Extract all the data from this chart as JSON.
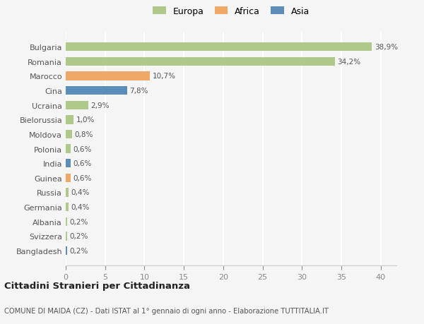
{
  "categories": [
    "Bangladesh",
    "Svizzera",
    "Albania",
    "Germania",
    "Russia",
    "Guinea",
    "India",
    "Polonia",
    "Moldova",
    "Bielorussia",
    "Ucraina",
    "Cina",
    "Marocco",
    "Romania",
    "Bulgaria"
  ],
  "values": [
    0.2,
    0.2,
    0.2,
    0.4,
    0.4,
    0.6,
    0.6,
    0.6,
    0.8,
    1.0,
    2.9,
    7.8,
    10.7,
    34.2,
    38.9
  ],
  "labels": [
    "0,2%",
    "0,2%",
    "0,2%",
    "0,4%",
    "0,4%",
    "0,6%",
    "0,6%",
    "0,6%",
    "0,8%",
    "1,0%",
    "2,9%",
    "7,8%",
    "10,7%",
    "34,2%",
    "38,9%"
  ],
  "colors": [
    "#5b8db8",
    "#aec98a",
    "#aec98a",
    "#aec98a",
    "#aec98a",
    "#f0a868",
    "#5b8db8",
    "#aec98a",
    "#aec98a",
    "#aec98a",
    "#aec98a",
    "#5b8db8",
    "#f0a868",
    "#aec98a",
    "#aec98a"
  ],
  "legend_labels": [
    "Europa",
    "Africa",
    "Asia"
  ],
  "legend_colors": [
    "#aec98a",
    "#f0a868",
    "#5b8db8"
  ],
  "xlim": [
    0,
    42
  ],
  "xticks": [
    0,
    5,
    10,
    15,
    20,
    25,
    30,
    35,
    40
  ],
  "title": "Cittadini Stranieri per Cittadinanza",
  "subtitle": "COMUNE DI MAIDA (CZ) - Dati ISTAT al 1° gennaio di ogni anno - Elaborazione TUTTITALIA.IT",
  "bg_color": "#f5f5f5",
  "grid_color": "#ffffff",
  "bar_height": 0.6,
  "label_fontsize": 7.5,
  "tick_fontsize": 8.0
}
